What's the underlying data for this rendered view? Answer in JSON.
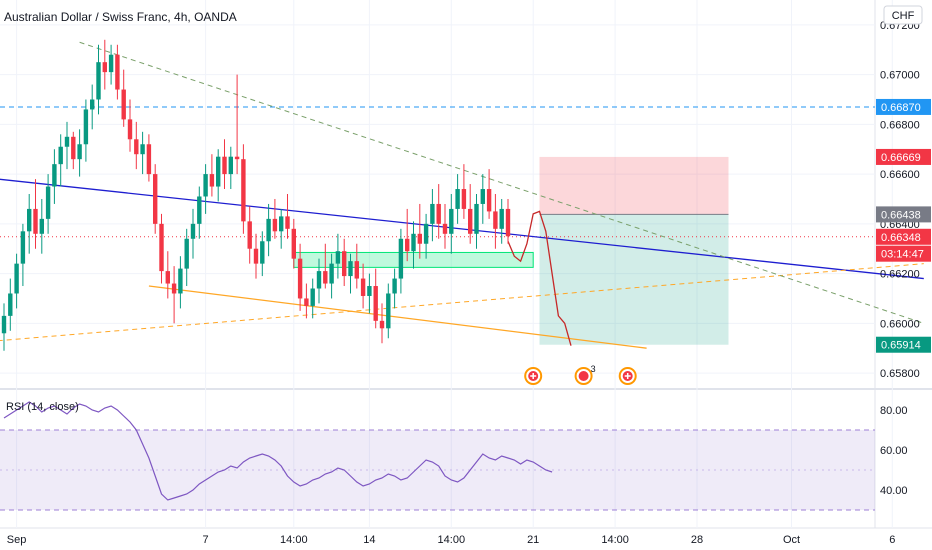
{
  "header": {
    "symbol_title": "Australian Dollar / Swiss Franc, 4h, OANDA",
    "currency_button": "CHF"
  },
  "price_scale": {
    "ticks": [
      {
        "label": "0.67200",
        "value": 0.672
      },
      {
        "label": "0.67000",
        "value": 0.67
      },
      {
        "label": "0.66800",
        "value": 0.668
      },
      {
        "label": "0.66600",
        "value": 0.666
      },
      {
        "label": "0.66400",
        "value": 0.664
      },
      {
        "label": "0.66200",
        "value": 0.662
      },
      {
        "label": "0.66000",
        "value": 0.66
      },
      {
        "label": "0.65800",
        "value": 0.658
      }
    ],
    "tags": [
      {
        "label": "0.66870",
        "value": 0.6687,
        "color": "#2196f3"
      },
      {
        "label": "0.66669",
        "value": 0.66669,
        "color": "#f23645"
      },
      {
        "label": "0.66438",
        "value": 0.66438,
        "color": "#787b86"
      },
      {
        "label": "0.66348",
        "value": 0.66348,
        "color": "#f23645"
      },
      {
        "label": "03:14:47",
        "value": 0.6628,
        "color": "#f23645"
      },
      {
        "label": "0.65914",
        "value": 0.65914,
        "color": "#089981"
      }
    ]
  },
  "rsi_panel": {
    "title": "RSI (14, close)",
    "ticks": [
      {
        "label": "80.00",
        "value": 80
      },
      {
        "label": "60.00",
        "value": 60
      },
      {
        "label": "40.00",
        "value": 40
      }
    ],
    "band": [
      30,
      70
    ],
    "color": "#7e57c2"
  },
  "time_axis": {
    "labels": [
      {
        "label": "Sep",
        "bar": 2
      },
      {
        "label": "7",
        "bar": 32
      },
      {
        "label": "14:00",
        "bar": 46
      },
      {
        "label": "14",
        "bar": 58
      },
      {
        "label": "14:00",
        "bar": 71
      },
      {
        "label": "21",
        "bar": 84
      },
      {
        "label": "14:00",
        "bar": 97
      },
      {
        "label": "28",
        "bar": 110
      },
      {
        "label": "Oct",
        "bar": 125
      },
      {
        "label": "6",
        "bar": 141
      }
    ]
  },
  "chart_data": {
    "type": "candlestick",
    "title": "Australian Dollar / Swiss Franc, 4h, OANDA",
    "ylim": [
      0.6574,
      0.673
    ],
    "up_color": "#089981",
    "down_color": "#f23645",
    "candles": [
      [
        0.6596,
        0.6608,
        0.6589,
        0.6603
      ],
      [
        0.6603,
        0.6618,
        0.6597,
        0.6612
      ],
      [
        0.6612,
        0.6628,
        0.6606,
        0.6624
      ],
      [
        0.6624,
        0.664,
        0.6615,
        0.6637
      ],
      [
        0.6637,
        0.6652,
        0.6628,
        0.6646
      ],
      [
        0.6646,
        0.6658,
        0.663,
        0.6636
      ],
      [
        0.6636,
        0.665,
        0.6628,
        0.6642
      ],
      [
        0.6642,
        0.666,
        0.6636,
        0.6655
      ],
      [
        0.6655,
        0.667,
        0.6648,
        0.6664
      ],
      [
        0.6664,
        0.6676,
        0.6655,
        0.6671
      ],
      [
        0.6671,
        0.6681,
        0.6662,
        0.6675
      ],
      [
        0.6675,
        0.6677,
        0.6662,
        0.6666
      ],
      [
        0.6666,
        0.6678,
        0.6659,
        0.6672
      ],
      [
        0.6672,
        0.669,
        0.6665,
        0.6686
      ],
      [
        0.6686,
        0.6696,
        0.6678,
        0.669
      ],
      [
        0.669,
        0.6712,
        0.6684,
        0.6705
      ],
      [
        0.6705,
        0.6714,
        0.6694,
        0.6701
      ],
      [
        0.6701,
        0.6712,
        0.6696,
        0.6708
      ],
      [
        0.6708,
        0.6712,
        0.669,
        0.6694
      ],
      [
        0.6694,
        0.6702,
        0.6679,
        0.6682
      ],
      [
        0.6682,
        0.669,
        0.6669,
        0.6674
      ],
      [
        0.6674,
        0.6681,
        0.6662,
        0.6668
      ],
      [
        0.6668,
        0.6677,
        0.666,
        0.6672
      ],
      [
        0.6672,
        0.6676,
        0.6657,
        0.666
      ],
      [
        0.666,
        0.6664,
        0.6636,
        0.664
      ],
      [
        0.664,
        0.6644,
        0.6616,
        0.6621
      ],
      [
        0.6621,
        0.6629,
        0.661,
        0.6616
      ],
      [
        0.6616,
        0.6623,
        0.66,
        0.6612
      ],
      [
        0.6612,
        0.6627,
        0.6606,
        0.6622
      ],
      [
        0.6622,
        0.6638,
        0.6615,
        0.6634
      ],
      [
        0.6634,
        0.6646,
        0.6626,
        0.664
      ],
      [
        0.664,
        0.6655,
        0.6634,
        0.6651
      ],
      [
        0.6651,
        0.6664,
        0.6644,
        0.666
      ],
      [
        0.666,
        0.6668,
        0.6651,
        0.6655
      ],
      [
        0.6655,
        0.667,
        0.6649,
        0.6667
      ],
      [
        0.6667,
        0.6674,
        0.6654,
        0.666
      ],
      [
        0.666,
        0.6671,
        0.6654,
        0.6667
      ],
      [
        0.6667,
        0.67,
        0.666,
        0.6666
      ],
      [
        0.6666,
        0.6672,
        0.6636,
        0.6641
      ],
      [
        0.6641,
        0.6647,
        0.6624,
        0.663
      ],
      [
        0.663,
        0.6636,
        0.6618,
        0.6624
      ],
      [
        0.6624,
        0.6637,
        0.6619,
        0.6633
      ],
      [
        0.6633,
        0.6648,
        0.6627,
        0.6642
      ],
      [
        0.6642,
        0.665,
        0.6634,
        0.6637
      ],
      [
        0.6637,
        0.6646,
        0.663,
        0.6643
      ],
      [
        0.6643,
        0.6652,
        0.6634,
        0.6638
      ],
      [
        0.6638,
        0.6642,
        0.6622,
        0.6626
      ],
      [
        0.6626,
        0.6632,
        0.6605,
        0.661
      ],
      [
        0.661,
        0.6616,
        0.6602,
        0.6607
      ],
      [
        0.6607,
        0.6618,
        0.6602,
        0.6614
      ],
      [
        0.6614,
        0.6626,
        0.6608,
        0.6621
      ],
      [
        0.6621,
        0.6632,
        0.6614,
        0.6616
      ],
      [
        0.6616,
        0.6628,
        0.661,
        0.6624
      ],
      [
        0.6624,
        0.6636,
        0.6618,
        0.6629
      ],
      [
        0.6629,
        0.6634,
        0.6615,
        0.6619
      ],
      [
        0.6619,
        0.6628,
        0.6612,
        0.6625
      ],
      [
        0.6625,
        0.6632,
        0.6614,
        0.6618
      ],
      [
        0.6618,
        0.6624,
        0.6606,
        0.6611
      ],
      [
        0.6611,
        0.662,
        0.6604,
        0.6615
      ],
      [
        0.6615,
        0.6622,
        0.6598,
        0.6601
      ],
      [
        0.6601,
        0.6608,
        0.6592,
        0.6598
      ],
      [
        0.6598,
        0.6616,
        0.6594,
        0.6612
      ],
      [
        0.6612,
        0.6622,
        0.6606,
        0.6618
      ],
      [
        0.6618,
        0.6638,
        0.6612,
        0.6634
      ],
      [
        0.6634,
        0.6646,
        0.6625,
        0.6629
      ],
      [
        0.6629,
        0.6641,
        0.6622,
        0.6636
      ],
      [
        0.6636,
        0.6648,
        0.6626,
        0.6632
      ],
      [
        0.6632,
        0.6644,
        0.6626,
        0.664
      ],
      [
        0.664,
        0.6654,
        0.6633,
        0.6648
      ],
      [
        0.6648,
        0.6656,
        0.6634,
        0.664
      ],
      [
        0.664,
        0.6648,
        0.663,
        0.6636
      ],
      [
        0.6636,
        0.6652,
        0.6628,
        0.6646
      ],
      [
        0.6646,
        0.666,
        0.664,
        0.6654
      ],
      [
        0.6654,
        0.6664,
        0.6642,
        0.6646
      ],
      [
        0.6646,
        0.6656,
        0.6632,
        0.6636
      ],
      [
        0.6636,
        0.6652,
        0.663,
        0.6648
      ],
      [
        0.6648,
        0.666,
        0.664,
        0.6654
      ],
      [
        0.6654,
        0.6662,
        0.6642,
        0.6645
      ],
      [
        0.6645,
        0.6652,
        0.663,
        0.6638
      ],
      [
        0.6638,
        0.665,
        0.6632,
        0.6646
      ],
      [
        0.6646,
        0.665,
        0.6632,
        0.6635
      ]
    ],
    "rsi": [
      76,
      78,
      80,
      82,
      84,
      82,
      79,
      81,
      82,
      80,
      78,
      81,
      83,
      82,
      80,
      79,
      81,
      82,
      80,
      77,
      74,
      70,
      63,
      56,
      47,
      38,
      35,
      36,
      37,
      38,
      40,
      43,
      45,
      47,
      49,
      50,
      52,
      51,
      54,
      56,
      57,
      58,
      57,
      55,
      52,
      47,
      44,
      42,
      43,
      45,
      46,
      48,
      49,
      51,
      50,
      47,
      44,
      42,
      43,
      45,
      46,
      48,
      47,
      45,
      46,
      49,
      52,
      55,
      54,
      52,
      47,
      45,
      44,
      46,
      50,
      54,
      58,
      56,
      55,
      57,
      56,
      55,
      53,
      55,
      54,
      52,
      50,
      49
    ],
    "lines": [
      {
        "name": "blue-trendline",
        "color": "#1e1ed0",
        "points": [
          [
            -1,
            0.6658
          ],
          [
            146,
            0.6618
          ]
        ]
      },
      {
        "name": "orange-lower-trendline",
        "color": "#ffa726",
        "points": [
          [
            23,
            0.6615
          ],
          [
            102,
            0.659
          ]
        ]
      },
      {
        "name": "orange-dashed-trendline",
        "color": "#ffa726",
        "dashed": true,
        "points": [
          [
            -1,
            0.6593
          ],
          [
            146,
            0.6624
          ]
        ]
      },
      {
        "name": "green-dashed-trendline",
        "color": "#7aa06a",
        "dashed": true,
        "points": [
          [
            12,
            0.6713
          ],
          [
            146,
            0.66
          ]
        ]
      }
    ],
    "horizontal_levels": [
      {
        "name": "resistance-level",
        "value": 0.6687,
        "color": "#2196f3",
        "dashed": true
      },
      {
        "name": "current-price-level",
        "value": 0.66348,
        "color": "#f23645",
        "dotted": true
      }
    ],
    "zone": {
      "from_bar": 46,
      "to_bar": 84,
      "top": 0.66285,
      "bottom": 0.66225,
      "color": "#00e676"
    },
    "position": {
      "from_bar": 85,
      "to_bar": 115,
      "entry": 0.66438,
      "stop": 0.66669,
      "target": 0.65914
    },
    "projection": [
      [
        80,
        0.6633
      ],
      [
        81,
        0.6627
      ],
      [
        82,
        0.6625
      ],
      [
        83,
        0.6632
      ],
      [
        84,
        0.6644
      ],
      [
        85,
        0.6645
      ],
      [
        86,
        0.6637
      ],
      [
        87,
        0.662
      ],
      [
        88,
        0.6603
      ],
      [
        89,
        0.66
      ],
      [
        90,
        0.6591
      ]
    ],
    "event_markers": [
      {
        "name": "event-marker-1",
        "bar": 84,
        "label": ""
      },
      {
        "name": "event-marker-australia",
        "bar": 92,
        "label": "3"
      },
      {
        "name": "event-marker-2",
        "bar": 99,
        "label": ""
      }
    ]
  }
}
